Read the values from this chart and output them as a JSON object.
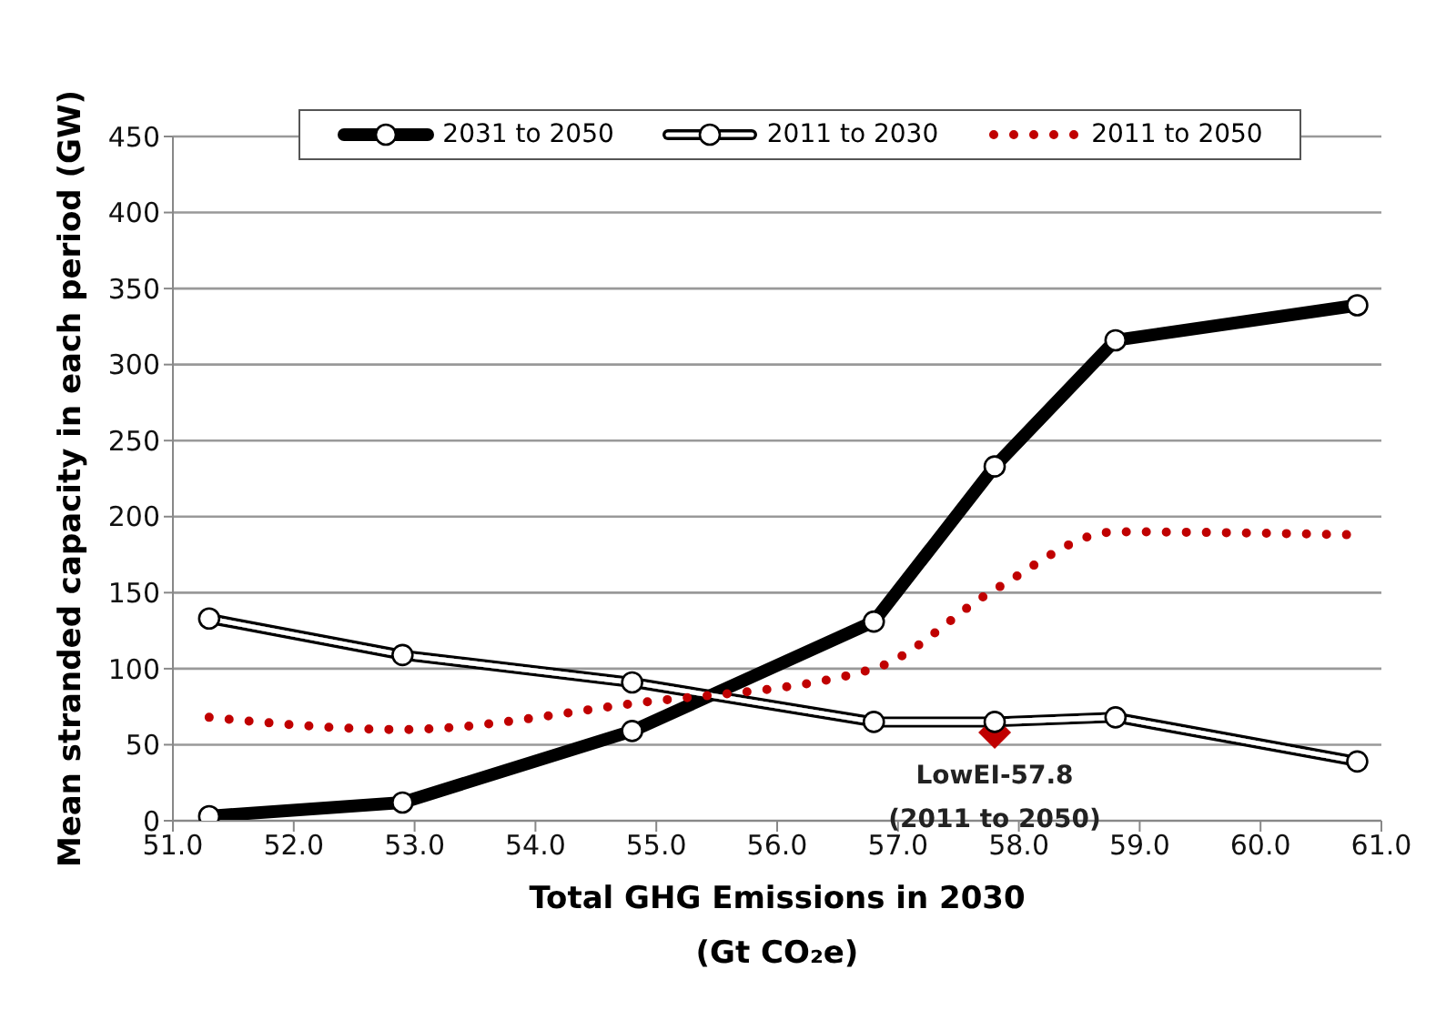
{
  "chart_data": {
    "type": "line",
    "xlabel": "Total GHG Emissions in 2030\n(Gt CO₂e)",
    "ylabel": "Mean stranded capacity in each period (GW)",
    "x": [
      51.3,
      52.9,
      54.8,
      56.8,
      57.8,
      58.8,
      60.8
    ],
    "series": [
      {
        "name": "2031 to 2050",
        "color": "#000000",
        "values": [
          3,
          12,
          59,
          131,
          233,
          316,
          339
        ],
        "marker": "circle",
        "line_style": "solid"
      },
      {
        "name": "2011 to 2030",
        "color": "#000000",
        "values": [
          133,
          109,
          91,
          65,
          65,
          68,
          39
        ],
        "marker": "circle",
        "line_style": "solid"
      },
      {
        "name": "2011 to 2050",
        "color": "#c00000",
        "values": [
          68,
          60,
          77,
          100,
          152,
          190,
          188
        ],
        "marker": "none",
        "line_style": "dotted"
      },
      {
        "type": "scatter",
        "color": "#c00000",
        "x": [
          57.8
        ],
        "values": [
          58
        ],
        "marker": "diamond"
      }
    ],
    "xlim": [
      51,
      61
    ],
    "xticks": [
      {
        "value": 51,
        "label": "51.0"
      },
      {
        "value": 52,
        "label": "52.0"
      },
      {
        "value": 53,
        "label": "53.0"
      },
      {
        "value": 54,
        "label": "54.0"
      },
      {
        "value": 55,
        "label": "55.0"
      },
      {
        "value": 56,
        "label": "56.0"
      },
      {
        "value": 57,
        "label": "57.0"
      },
      {
        "value": 58,
        "label": "58.0"
      },
      {
        "value": 59,
        "label": "59.0"
      },
      {
        "value": 60,
        "label": "60.0"
      },
      {
        "value": 61,
        "label": "61.0"
      }
    ],
    "ylim": [
      0,
      450
    ],
    "yticks": [
      0,
      50,
      100,
      150,
      200,
      250,
      300,
      350,
      400,
      450
    ],
    "grid": "y",
    "legend": "top",
    "annotations": [
      {
        "text": "LowEI-57.8\n(2011 to 2050)",
        "x": 57.8,
        "y": 58
      }
    ]
  }
}
